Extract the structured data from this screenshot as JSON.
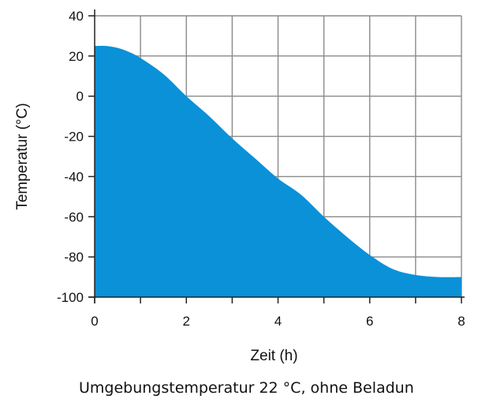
{
  "caption": "Umgebungstemperatur 22 °C, ohne Beladun",
  "colors": {
    "fill": "#0a91d8",
    "grid": "#8a8a8a",
    "axis": "#222222"
  },
  "chart_data": {
    "type": "area",
    "title": "",
    "xlabel": "Zeit (h)",
    "ylabel": "Temperatur (°C)",
    "xlim": [
      0,
      8
    ],
    "ylim": [
      -100,
      40
    ],
    "xticks": [
      0,
      1,
      2,
      3,
      4,
      5,
      6,
      7,
      8
    ],
    "xtick_labels": [
      "0",
      "",
      "2",
      "",
      "4",
      "",
      "6",
      "",
      "8"
    ],
    "yticks": [
      -100,
      -80,
      -60,
      -40,
      -20,
      0,
      20,
      40
    ],
    "ytick_labels": [
      "-100",
      "-80",
      "-60",
      "-40",
      "-20",
      "0",
      "20",
      "40"
    ],
    "grid": true,
    "baseline": -100,
    "series": [
      {
        "x": [
          0,
          0.25,
          0.5,
          0.75,
          1,
          1.5,
          2,
          2.5,
          3,
          3.5,
          4,
          4.5,
          5,
          5.5,
          6,
          6.5,
          7,
          7.5,
          8
        ],
        "y": [
          25,
          25,
          24,
          22,
          19,
          11,
          0,
          -10,
          -21,
          -31,
          -41,
          -49,
          -60,
          -70,
          -79,
          -86,
          -89,
          -90,
          -90
        ]
      }
    ]
  }
}
